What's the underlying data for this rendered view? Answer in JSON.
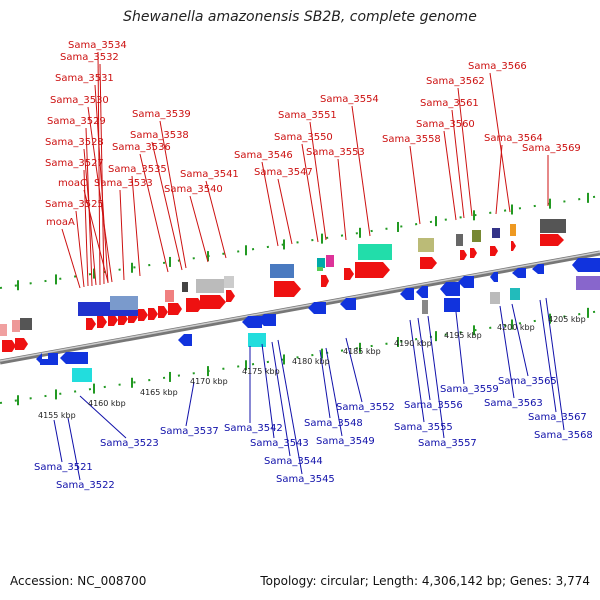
{
  "title": "Shewanella amazonensis SB2B, complete genome",
  "footer": {
    "accession": "Accession: NC_008700",
    "stats": "Topology: circular; Length: 4,306,142 bp; Genes: 3,774"
  },
  "kbp_ticks": [
    "4155 kbp",
    "4160 kbp",
    "4165 kbp",
    "4170 kbp",
    "4175 kbp",
    "4180 kbp",
    "4185 kbp",
    "4190 kbp",
    "4195 kbp",
    "4200 kbp",
    "4205 kbp"
  ],
  "top_labels": [
    "Sama_3534",
    "Sama_3532",
    "Sama_3531",
    "Sama_3530",
    "Sama_3529",
    "Sama_3528",
    "Sama_3527",
    "moaC",
    "Sama_3533",
    "Sama_3525",
    "moaA",
    "Sama_3539",
    "Sama_3538",
    "Sama_3536",
    "Sama_3535",
    "Sama_3541",
    "Sama_3540",
    "Sama_3546",
    "Sama_3547",
    "Sama_3551",
    "Sama_3550",
    "Sama_3553",
    "Sama_3554",
    "Sama_3558",
    "Sama_3562",
    "Sama_3561",
    "Sama_3560",
    "Sama_3566",
    "Sama_3564",
    "Sama_3569"
  ],
  "bottom_labels": [
    "Sama_3521",
    "Sama_3522",
    "Sama_3523",
    "Sama_3537",
    "Sama_3542",
    "Sama_3543",
    "Sama_3544",
    "Sama_3545",
    "Sama_3548",
    "Sama_3549",
    "Sama_3552",
    "Sama_3555",
    "Sama_3556",
    "Sama_3557",
    "Sama_3559",
    "Sama_3563",
    "Sama_3565",
    "Sama_3567",
    "Sama_3568"
  ],
  "colors": {
    "forward_gene": "#ee1111",
    "reverse_gene": "#1133dd",
    "top_label": "#cc1111",
    "bottom_label": "#1111aa",
    "backbone": "#888888",
    "tick": "#229922"
  }
}
